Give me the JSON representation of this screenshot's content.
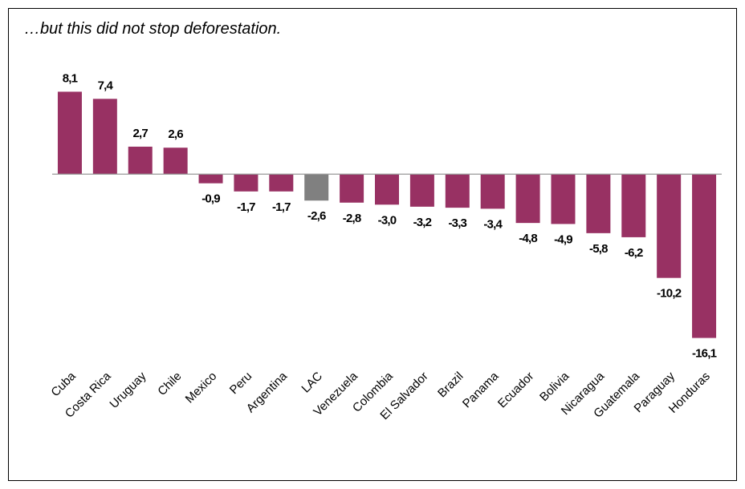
{
  "chart_data": {
    "type": "bar",
    "title": "…but this did not stop deforestation.",
    "categories": [
      "Cuba",
      "Costa Rica",
      "Uruguay",
      "Chile",
      "Mexico",
      "Peru",
      "Argentina",
      "LAC",
      "Venezuela",
      "Colombia",
      "El Salvador",
      "Brazil",
      "Panama",
      "Ecuador",
      "Bolivia",
      "Nicaragua",
      "Guatemala",
      "Paraguay",
      "Honduras"
    ],
    "values": [
      8.1,
      7.4,
      2.7,
      2.6,
      -0.9,
      -1.7,
      -1.7,
      -2.6,
      -2.8,
      -3.0,
      -3.2,
      -3.3,
      -3.4,
      -4.8,
      -4.9,
      -5.8,
      -6.2,
      -10.2,
      -16.1
    ],
    "value_labels": [
      "8,1",
      "7,4",
      "2,7",
      "2,6",
      "-0,9",
      "-1,7",
      "-1,7",
      "-2,6",
      "-2,8",
      "-3,0",
      "-3,2",
      "-3,3",
      "-3,4",
      "-4,8",
      "-4,9",
      "-5,8",
      "-6,2",
      "-10,2",
      "-16,1"
    ],
    "colors": [
      "#983163",
      "#983163",
      "#983163",
      "#983163",
      "#983163",
      "#983163",
      "#983163",
      "#808080",
      "#983163",
      "#983163",
      "#983163",
      "#983163",
      "#983163",
      "#983163",
      "#983163",
      "#983163",
      "#983163",
      "#983163",
      "#983163"
    ],
    "ylim": [
      -17,
      9
    ]
  }
}
